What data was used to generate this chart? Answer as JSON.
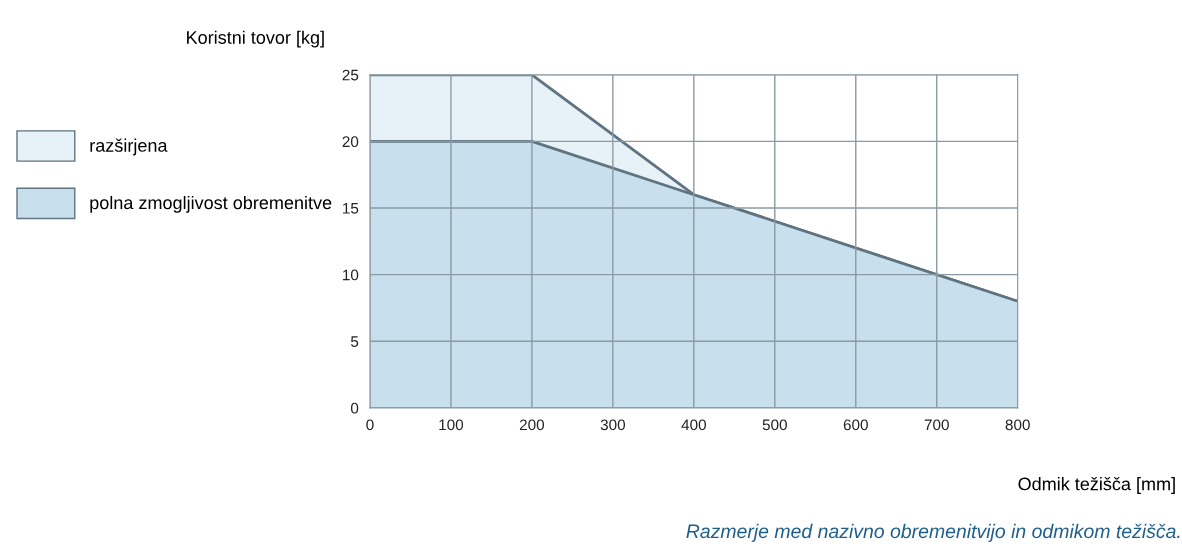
{
  "chart_data": {
    "type": "area",
    "ylabel": "Koristni tovor [kg]",
    "xlabel": "Odmik težišča [mm]",
    "annotations": [
      "Razmerje med nazivno obremenitvijo in odmikom težišča."
    ],
    "series": [
      {
        "name": "razširjena",
        "color": "#e6f1f8",
        "x": [
          0,
          200,
          400,
          800
        ],
        "values": [
          25,
          25,
          16,
          8
        ]
      },
      {
        "name": "polna zmogljivost obremenitve",
        "color": "#c8e0ed",
        "x": [
          0,
          200,
          400,
          800
        ],
        "values": [
          20,
          20,
          16,
          8
        ]
      }
    ],
    "xlim": [
      0,
      800
    ],
    "xticks": [
      0,
      100,
      200,
      300,
      400,
      500,
      600,
      700,
      800
    ],
    "ylim": [
      0,
      25
    ],
    "yticks": [
      0,
      5,
      10,
      15,
      20,
      25
    ],
    "grid": true,
    "legend": "left"
  }
}
